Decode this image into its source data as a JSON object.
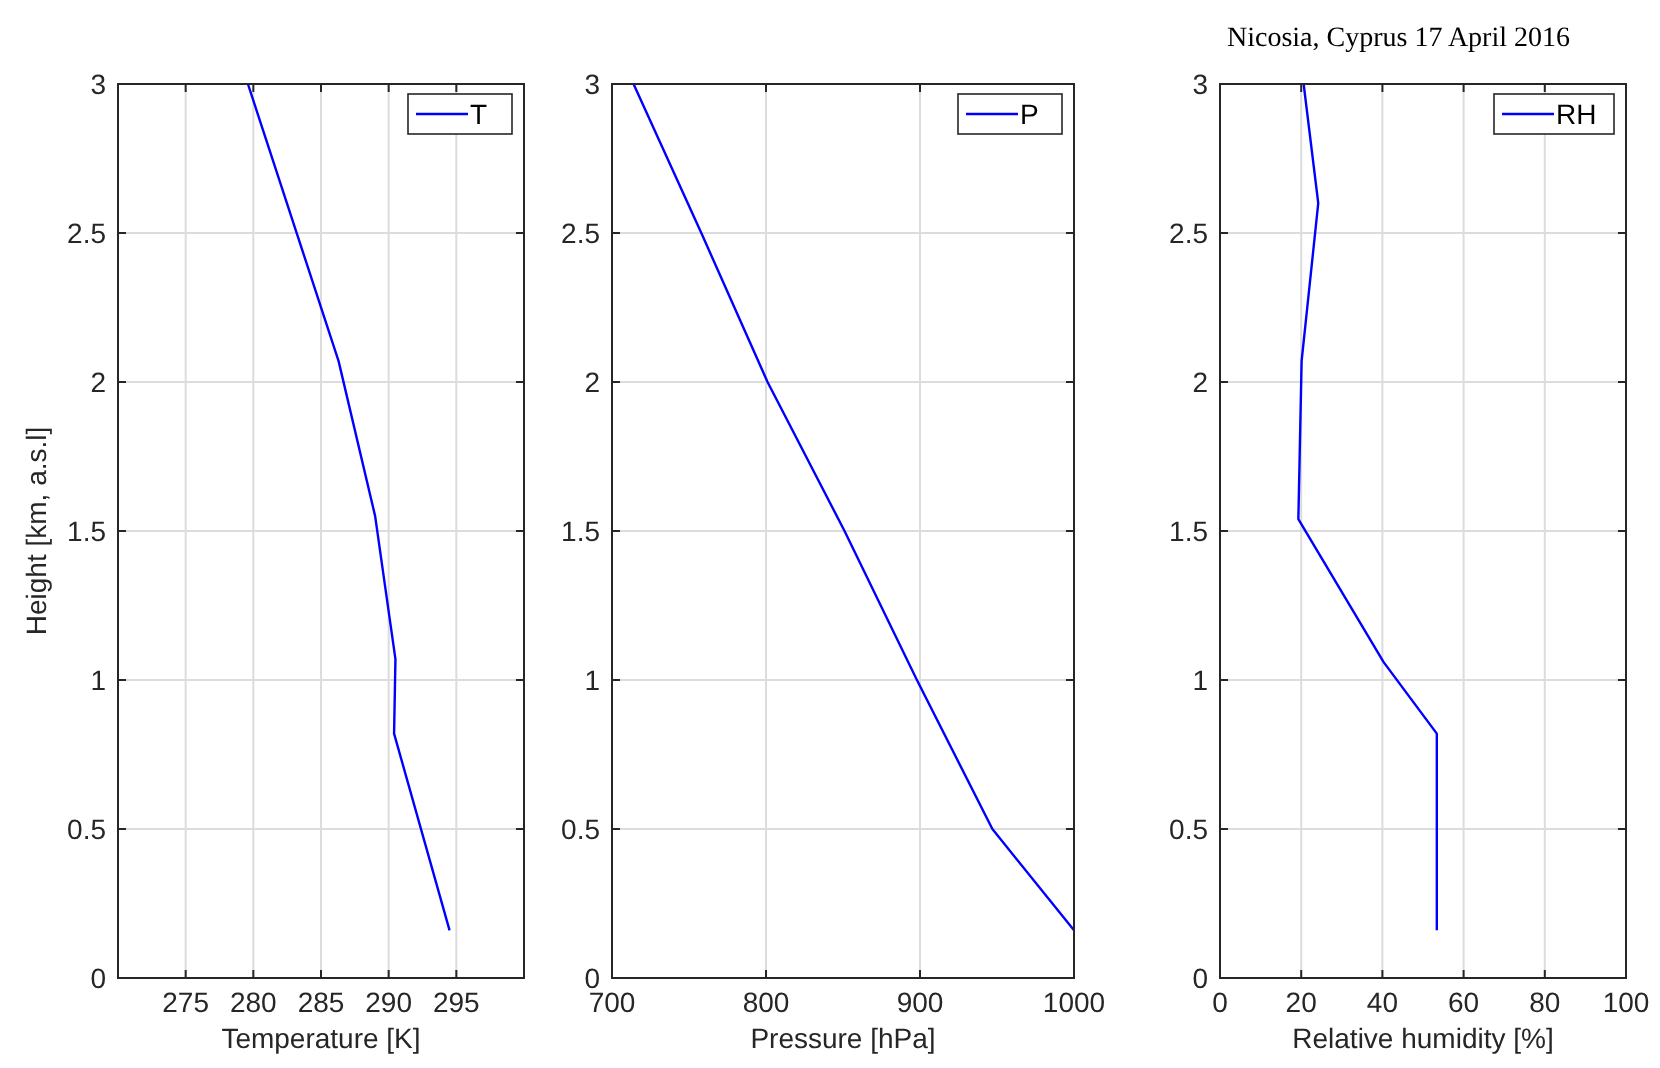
{
  "chart_data": [
    {
      "type": "line",
      "xlabel": "Temperature [K]",
      "ylabel": "Height [km, a.s.l]",
      "xlim": [
        270,
        300
      ],
      "xticks": [
        275,
        280,
        285,
        290,
        295
      ],
      "ylim": [
        0,
        3
      ],
      "yticks": [
        0,
        0.5,
        1,
        1.5,
        2,
        2.5,
        3
      ],
      "grid": true,
      "legend": "top right",
      "series": [
        {
          "name": "T",
          "color": "#0000ff",
          "x": [
            294.5,
            290.4,
            290.5,
            289.0,
            286.3,
            279.6
          ],
          "values": [
            0.16,
            0.82,
            1.07,
            1.55,
            2.07,
            3
          ]
        }
      ]
    },
    {
      "type": "line",
      "xlabel": "Pressure [hPa]",
      "xlim": [
        700,
        1000
      ],
      "xticks": [
        700,
        800,
        900,
        1000
      ],
      "ylim": [
        0,
        3
      ],
      "yticks": [
        0,
        0.5,
        1,
        1.5,
        2,
        2.5,
        3
      ],
      "grid": true,
      "legend": "top right",
      "series": [
        {
          "name": "P",
          "color": "#0000ff",
          "x": [
            1000,
            947,
            898,
            851,
            801,
            758,
            714
          ],
          "values": [
            0.16,
            0.5,
            1,
            1.5,
            2,
            2.5,
            3
          ]
        }
      ]
    },
    {
      "type": "line",
      "title": "Nicosia, Cyprus 17 April 2016",
      "xlabel": "Relative humidity [%]",
      "xlim": [
        0,
        100
      ],
      "xticks": [
        0,
        20,
        40,
        60,
        80,
        100
      ],
      "ylim": [
        0,
        3
      ],
      "yticks": [
        0,
        0.5,
        1,
        1.5,
        2,
        2.5,
        3
      ],
      "grid": true,
      "legend": "top right",
      "series": [
        {
          "name": "RH",
          "color": "#0000ff",
          "x": [
            53.4,
            53.4,
            40.3,
            19.3,
            20.1,
            24.2,
            20.6
          ],
          "values": [
            0.16,
            0.82,
            1.06,
            1.54,
            2.07,
            2.6,
            3
          ]
        }
      ]
    }
  ]
}
